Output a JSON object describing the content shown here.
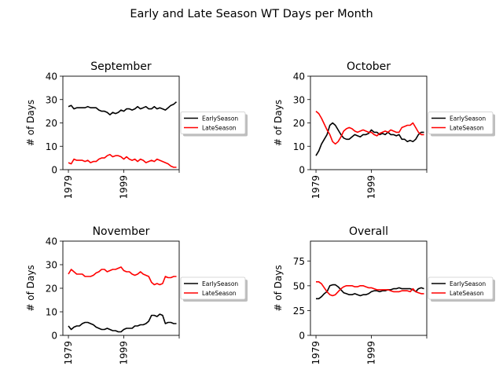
{
  "figure_title": "Early and Late Season WT Days per Month",
  "colors": {
    "early": "#000000",
    "late": "#ff0000"
  },
  "chart_data": [
    {
      "type": "line",
      "title": "September",
      "xlabel": "",
      "ylabel": "# of Days",
      "xlim": [
        1977,
        2019
      ],
      "ylim": [
        0,
        40
      ],
      "yticks": [
        0,
        10,
        20,
        30,
        40
      ],
      "xticks": [
        1979,
        1999,
        2019
      ],
      "xtick_labels": [
        "1979",
        "1999",
        ""
      ],
      "legend": {
        "placement": "right",
        "entries": [
          "EarlySeason",
          "LateSeason"
        ]
      },
      "x": [
        1979,
        1980,
        1981,
        1982,
        1983,
        1984,
        1985,
        1986,
        1987,
        1988,
        1989,
        1990,
        1991,
        1992,
        1993,
        1994,
        1995,
        1996,
        1997,
        1998,
        1999,
        2000,
        2001,
        2002,
        2003,
        2004,
        2005,
        2006,
        2007,
        2008,
        2009,
        2010,
        2011,
        2012,
        2013,
        2014,
        2015,
        2016,
        2017,
        2018
      ],
      "series": [
        {
          "name": "EarlySeason",
          "color": "#000000",
          "values": [
            27,
            27.5,
            26,
            26.5,
            26.5,
            26.5,
            26.5,
            27,
            26.5,
            26.5,
            26.5,
            25.5,
            25,
            25,
            24.5,
            23.5,
            24.5,
            24,
            24.5,
            25.5,
            25,
            26,
            26,
            25.5,
            26,
            27,
            26,
            26.5,
            27,
            26,
            26,
            27,
            26,
            26.5,
            26,
            25.5,
            26.5,
            27.5,
            28,
            29
          ]
        },
        {
          "name": "LateSeason",
          "color": "#ff0000",
          "values": [
            3,
            2.5,
            4.5,
            4,
            4,
            4,
            3.5,
            4,
            3,
            3.5,
            3.5,
            4.5,
            5,
            5,
            6,
            6.5,
            5.5,
            6,
            6,
            5.5,
            4.5,
            5.5,
            4.5,
            4,
            4.5,
            3.5,
            4.5,
            4,
            3,
            3.5,
            4,
            3.5,
            4.5,
            4,
            3.5,
            3,
            2.5,
            1.5,
            1,
            1
          ]
        }
      ]
    },
    {
      "type": "line",
      "title": "October",
      "xlabel": "",
      "ylabel": "# of Days",
      "xlim": [
        1977,
        2019
      ],
      "ylim": [
        0,
        40
      ],
      "yticks": [
        0,
        10,
        20,
        30,
        40
      ],
      "xticks": [
        1979,
        1999,
        2019
      ],
      "xtick_labels": [
        "1979",
        "1999",
        ""
      ],
      "legend": {
        "placement": "right",
        "entries": [
          "EarlySeason",
          "LateSeason"
        ]
      },
      "x": [
        1979,
        1980,
        1981,
        1982,
        1983,
        1984,
        1985,
        1986,
        1987,
        1988,
        1989,
        1990,
        1991,
        1992,
        1993,
        1994,
        1995,
        1996,
        1997,
        1998,
        1999,
        2000,
        2001,
        2002,
        2003,
        2004,
        2005,
        2006,
        2007,
        2008,
        2009,
        2010,
        2011,
        2012,
        2013,
        2014,
        2015,
        2016,
        2017,
        2018
      ],
      "series": [
        {
          "name": "EarlySeason",
          "color": "#000000",
          "values": [
            6,
            8,
            11,
            13,
            15,
            19,
            20,
            19,
            17,
            15,
            13.5,
            13,
            13,
            14,
            15,
            14.5,
            14,
            15,
            15,
            15.5,
            17,
            16,
            16,
            15,
            15.5,
            15,
            16,
            15,
            15,
            14.5,
            15,
            13,
            13,
            12,
            12.5,
            12,
            13,
            15,
            16,
            16
          ]
        },
        {
          "name": "LateSeason",
          "color": "#ff0000",
          "values": [
            25,
            24,
            22,
            19.5,
            17,
            15,
            12,
            11,
            12,
            14,
            16.5,
            17.5,
            18,
            17.5,
            16.5,
            16,
            16.5,
            17,
            16.5,
            16,
            16,
            15,
            14.5,
            15.5,
            16,
            16.5,
            16,
            17,
            16.5,
            16,
            16,
            18,
            18.5,
            19,
            19,
            20,
            18,
            16,
            15,
            15
          ]
        }
      ]
    },
    {
      "type": "line",
      "title": "November",
      "xlabel": "",
      "ylabel": "# of Days",
      "xlim": [
        1977,
        2019
      ],
      "ylim": [
        0,
        40
      ],
      "yticks": [
        0,
        10,
        20,
        30,
        40
      ],
      "xticks": [
        1979,
        1999,
        2019
      ],
      "xtick_labels": [
        "1979",
        "1999",
        ""
      ],
      "legend": {
        "placement": "right",
        "entries": [
          "EarlySeason",
          "LateSeason"
        ]
      },
      "x": [
        1979,
        1980,
        1981,
        1982,
        1983,
        1984,
        1985,
        1986,
        1987,
        1988,
        1989,
        1990,
        1991,
        1992,
        1993,
        1994,
        1995,
        1996,
        1997,
        1998,
        1999,
        2000,
        2001,
        2002,
        2003,
        2004,
        2005,
        2006,
        2007,
        2008,
        2009,
        2010,
        2011,
        2012,
        2013,
        2014,
        2015,
        2016,
        2017,
        2018
      ],
      "series": [
        {
          "name": "EarlySeason",
          "color": "#000000",
          "values": [
            4,
            2.5,
            3.5,
            4,
            4,
            5,
            5.5,
            5.5,
            5,
            4.5,
            3.5,
            3,
            2.5,
            2.5,
            3,
            2.5,
            2,
            2,
            1.5,
            1.5,
            2.5,
            3,
            3,
            3,
            4,
            4,
            4.5,
            4.5,
            5,
            6,
            8.5,
            8.5,
            8,
            9,
            8.5,
            5,
            5.5,
            5.5,
            5,
            5
          ]
        },
        {
          "name": "LateSeason",
          "color": "#ff0000",
          "values": [
            26,
            28,
            27,
            26,
            26,
            26,
            25,
            25,
            25,
            25.5,
            26.5,
            27,
            28,
            28,
            27,
            27.5,
            28,
            28,
            28.5,
            29,
            27.5,
            27,
            27,
            26,
            25.5,
            26,
            27,
            26,
            25.5,
            25,
            22.5,
            21.5,
            22,
            21.5,
            22,
            25,
            24.5,
            24.5,
            25,
            25
          ]
        }
      ]
    },
    {
      "type": "line",
      "title": "Overall",
      "xlabel": "",
      "ylabel": "# of Days",
      "xlim": [
        1977,
        2019
      ],
      "ylim": [
        0,
        95
      ],
      "yticks": [
        0,
        25,
        50,
        75
      ],
      "xticks": [
        1979,
        1999,
        2019
      ],
      "xtick_labels": [
        "1979",
        "1999",
        ""
      ],
      "legend": {
        "placement": "right",
        "entries": [
          "EarlySeason",
          "LateSeason"
        ]
      },
      "x": [
        1979,
        1980,
        1981,
        1982,
        1983,
        1984,
        1985,
        1986,
        1987,
        1988,
        1989,
        1990,
        1991,
        1992,
        1993,
        1994,
        1995,
        1996,
        1997,
        1998,
        1999,
        2000,
        2001,
        2002,
        2003,
        2004,
        2005,
        2006,
        2007,
        2008,
        2009,
        2010,
        2011,
        2012,
        2013,
        2014,
        2015,
        2016,
        2017,
        2018
      ],
      "series": [
        {
          "name": "EarlySeason",
          "color": "#000000",
          "values": [
            37,
            37,
            39,
            42,
            44,
            50,
            51,
            51,
            49,
            46,
            43,
            42,
            41,
            41,
            42,
            41,
            40,
            41,
            41,
            42,
            44,
            45,
            45,
            44,
            45,
            45,
            46,
            46,
            47,
            47,
            48,
            47,
            47,
            47,
            47,
            46,
            44,
            47,
            48,
            47
          ]
        },
        {
          "name": "LateSeason",
          "color": "#ff0000",
          "values": [
            54,
            54,
            52,
            48,
            44,
            41,
            40,
            41,
            44,
            47,
            49,
            50,
            50,
            50,
            49,
            49,
            50,
            50,
            49,
            48,
            48,
            47,
            46,
            46,
            46,
            46,
            46,
            45,
            44,
            44,
            44,
            45,
            45,
            45,
            44,
            47,
            44,
            43,
            42,
            42
          ]
        }
      ]
    }
  ]
}
